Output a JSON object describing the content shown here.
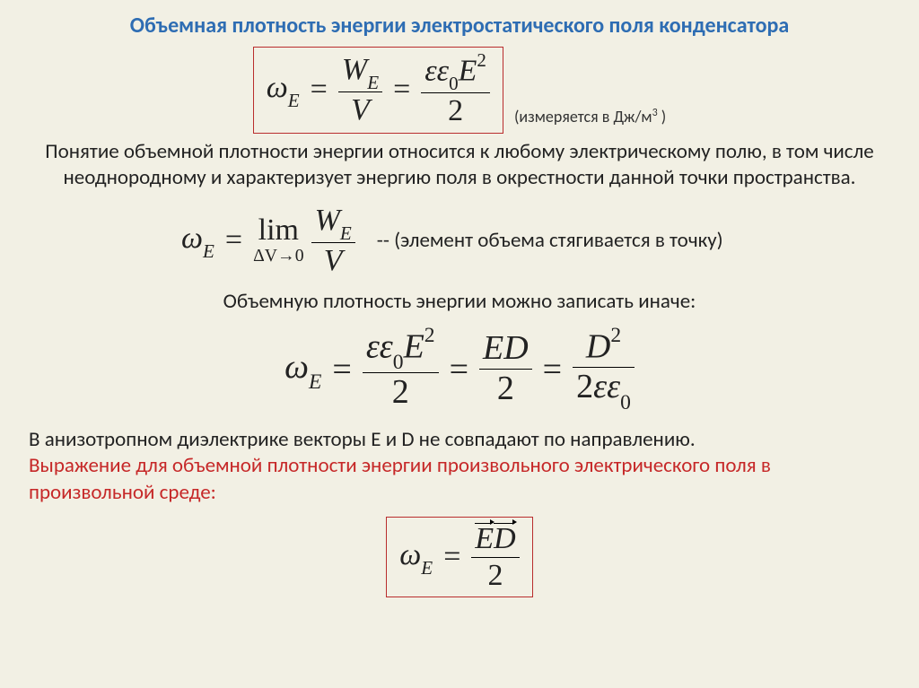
{
  "colors": {
    "background": "#f2f0e4",
    "title": "#2e6db3",
    "box_border": "#b92d2d",
    "red_text": "#c62828",
    "body": "#222222"
  },
  "title": "Объемная плотность энергии электростатического поля конденсатора",
  "units_note_prefix": "(измеряется в Дж/м",
  "units_note_sup": "3",
  "units_note_suffix": "  )",
  "para1": "Понятие объемной плотности энергии относится к любому электрическому полю, в том числе неоднородному и характеризует энергию  поля в окрестности данной точки пространства.",
  "limit_comment": "-- (элемент объема стягивается в точку)",
  "para2": "Объемную плотность энергии можно записать иначе:",
  "para3_black": "В анизотропном диэлектрике векторы E и D не совпадают по направлению.",
  "para3_red": "Выражение для объемной плотности энергии произвольного электрического поля в произвольной среде:",
  "sym": {
    "omega": "ω",
    "E": "E",
    "W": "W",
    "V": "V",
    "eps": "ε",
    "D": "D",
    "two": "2",
    "zero": "0",
    "lim": "lim",
    "dV": "ΔV",
    "to0": "→0",
    "eq": "="
  }
}
